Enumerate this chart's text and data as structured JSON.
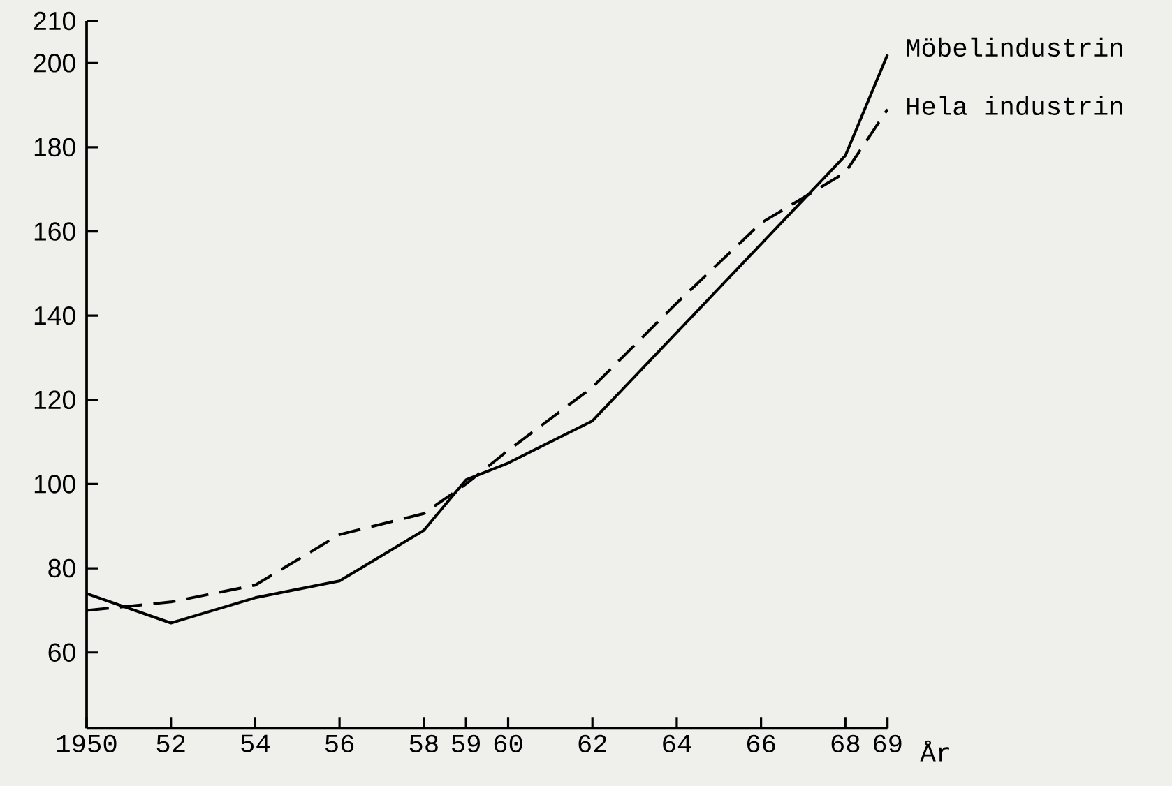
{
  "chart_data": {
    "type": "line",
    "xlabel": "År",
    "x": [
      1950,
      1952,
      1954,
      1956,
      1958,
      1959,
      1960,
      1962,
      1964,
      1966,
      1968,
      1969
    ],
    "series": [
      {
        "name": "Möbelindustrin",
        "color": "#000000",
        "line_style": "solid",
        "values": [
          74,
          67,
          73,
          77,
          89,
          101,
          105,
          115,
          136,
          157,
          178,
          202
        ]
      },
      {
        "name": "Hela industrin",
        "color": "#000000",
        "line_style": "dashed",
        "values": [
          70,
          72,
          76,
          88,
          93,
          100,
          108,
          123,
          143,
          162,
          174,
          189
        ]
      }
    ],
    "xlim": [
      1950,
      1969
    ],
    "ylim": [
      42,
      210
    ],
    "xticks": [
      1950,
      {
        "value": 1952,
        "label": "52"
      },
      {
        "value": 1954,
        "label": "54"
      },
      {
        "value": 1956,
        "label": "56"
      },
      {
        "value": 1958,
        "label": "58"
      },
      {
        "value": 1959,
        "label": "59"
      },
      {
        "value": 1960,
        "label": "60"
      },
      {
        "value": 1962,
        "label": "62"
      },
      {
        "value": 1964,
        "label": "64"
      },
      {
        "value": 1966,
        "label": "66"
      },
      {
        "value": 1968,
        "label": "68"
      },
      {
        "value": 1969,
        "label": "69"
      }
    ],
    "yticks": [
      60,
      80,
      100,
      120,
      140,
      160,
      180,
      200,
      210
    ],
    "grid": false,
    "legend": false,
    "marker": "none"
  }
}
